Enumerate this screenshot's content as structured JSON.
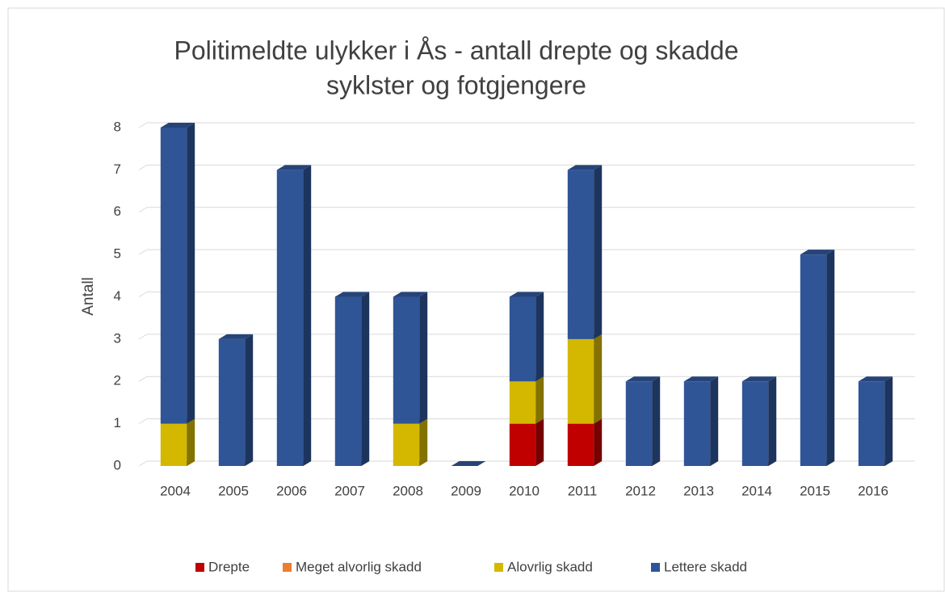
{
  "chart_data": {
    "type": "bar3d_stacked",
    "title": [
      "Politimeldte ulykker i Ås - antall drepte og skadde",
      "syklster og fotgjengere"
    ],
    "ylabel": "Antall",
    "categories": [
      "2004",
      "2005",
      "2006",
      "2007",
      "2008",
      "2009",
      "2010",
      "2011",
      "2012",
      "2013",
      "2014",
      "2015",
      "2016"
    ],
    "series": [
      {
        "name": "Drepte",
        "color": "#c00000",
        "values": [
          0,
          0,
          0,
          0,
          0,
          0,
          1,
          1,
          0,
          0,
          0,
          0,
          0
        ]
      },
      {
        "name": "Meget alvorlig skadd",
        "color": "#ed7d31",
        "values": [
          0,
          0,
          0,
          0,
          0,
          0,
          0,
          0,
          0,
          0,
          0,
          0,
          0
        ]
      },
      {
        "name": "Alovrlig skadd",
        "color": "#d4b800",
        "values": [
          1,
          0,
          0,
          0,
          1,
          0,
          1,
          2,
          0,
          0,
          0,
          0,
          0
        ]
      },
      {
        "name": "Lettere skadd",
        "color": "#2f5597",
        "values": [
          7,
          3,
          7,
          4,
          3,
          0,
          2,
          4,
          2,
          2,
          2,
          5,
          2
        ]
      }
    ],
    "ylim": [
      0,
      8
    ],
    "yticks": [
      0,
      1,
      2,
      3,
      4,
      5,
      6,
      7,
      8
    ],
    "grid": true,
    "legend": "bottom"
  }
}
